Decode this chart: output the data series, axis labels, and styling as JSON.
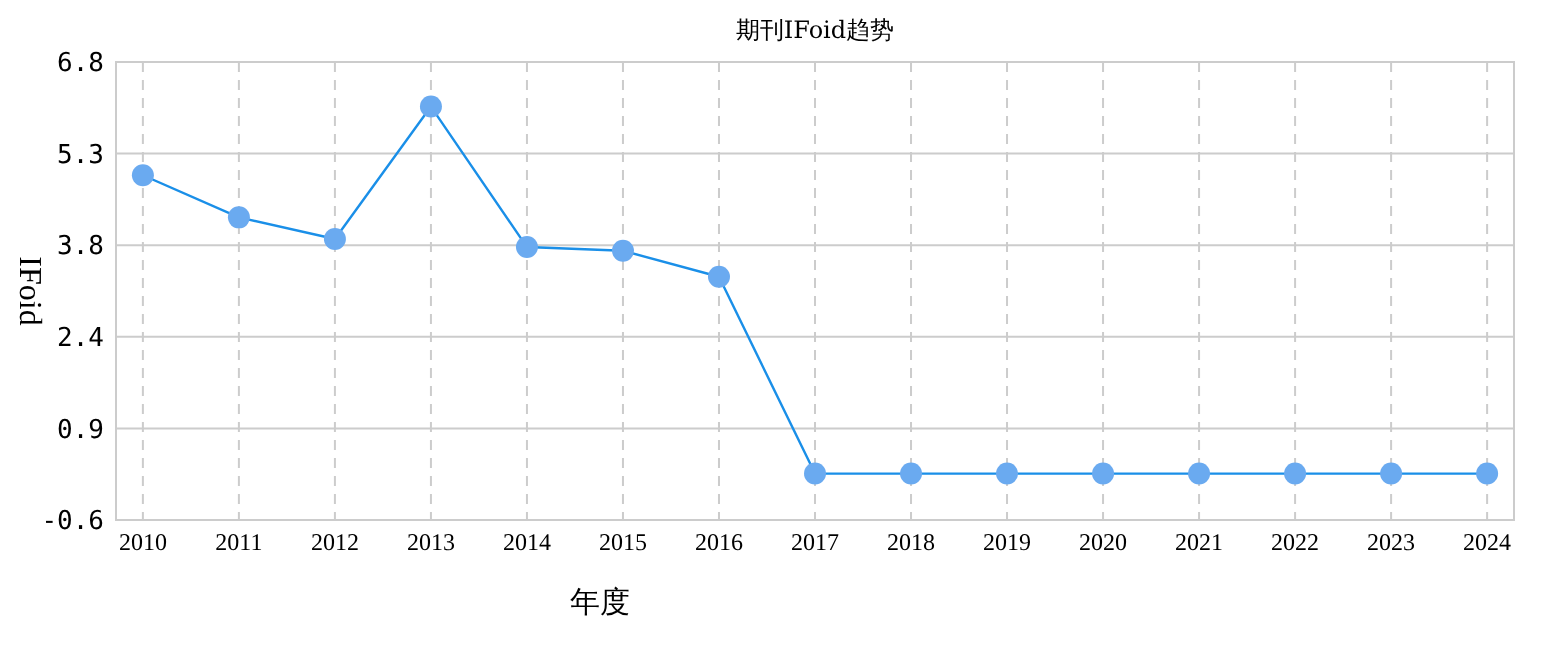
{
  "chart_data": {
    "type": "line",
    "title": "期刊IFoid趋势",
    "xlabel": "年度",
    "ylabel": "IFoid",
    "categories": [
      "2010",
      "2011",
      "2012",
      "2013",
      "2014",
      "2015",
      "2016",
      "2017",
      "2018",
      "2019",
      "2020",
      "2021",
      "2022",
      "2023",
      "2024"
    ],
    "series": [
      {
        "color": "#1a8fe8",
        "values": [
          4.97,
          4.29,
          3.94,
          6.08,
          3.81,
          3.75,
          3.33,
          0.15,
          0.15,
          0.15,
          0.15,
          0.15,
          0.15,
          0.15,
          0.15
        ]
      }
    ],
    "ylim": [
      -0.6,
      6.8
    ],
    "yticks": [
      -0.6,
      {
        "value": 0.88,
        "label": "0.9"
      },
      {
        "value": 2.36,
        "label": "2.4"
      },
      {
        "value": 3.84,
        "label": "3.8"
      },
      {
        "value": 5.32,
        "label": "5.3"
      },
      6.8
    ],
    "grid": true,
    "marker": "circle",
    "line_style": "solid"
  }
}
